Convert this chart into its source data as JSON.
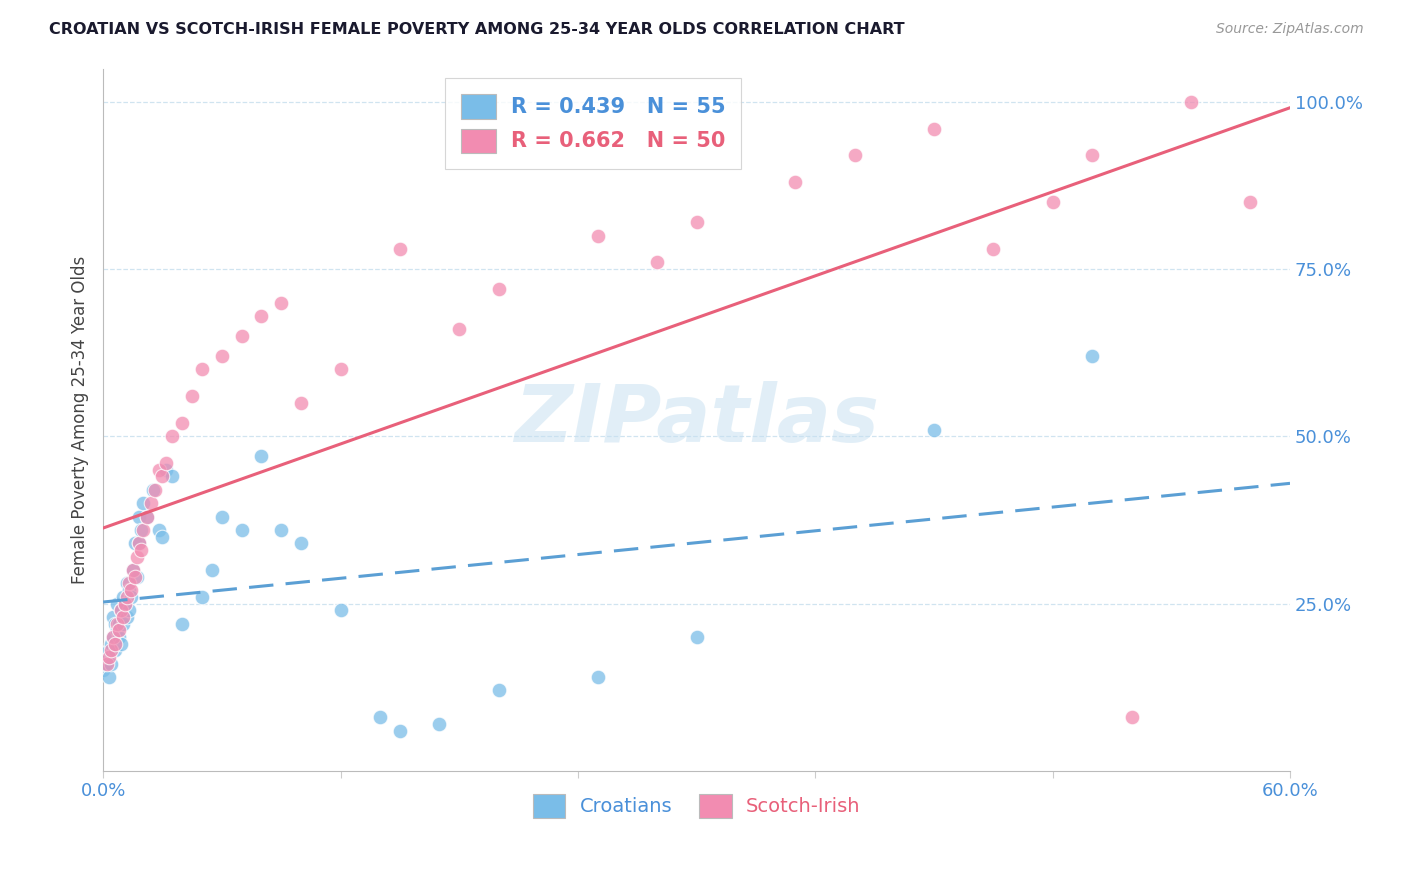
{
  "title": "CROATIAN VS SCOTCH-IRISH FEMALE POVERTY AMONG 25-34 YEAR OLDS CORRELATION CHART",
  "source": "Source: ZipAtlas.com",
  "ylabel_label": "Female Poverty Among 25-34 Year Olds",
  "legend_r1": "R = 0.439",
  "legend_n1": "N = 55",
  "legend_r2": "R = 0.662",
  "legend_n2": "N = 50",
  "croatian_color": "#7abde8",
  "scotchirish_color": "#f28cb1",
  "line_croatian_color": "#5b9fd4",
  "line_scotchirish_color": "#e8607a",
  "watermark_color": "#c5dff0",
  "tick_color": "#4a90d9",
  "title_color": "#1a1a2e",
  "source_color": "#999999",
  "xlim": [
    0.0,
    0.6
  ],
  "ylim": [
    0.0,
    1.05
  ],
  "x_ticks": [
    0.0,
    0.6
  ],
  "x_tick_labels": [
    "0.0%",
    "60.0%"
  ],
  "y_ticks": [
    0.25,
    0.5,
    0.75,
    1.0
  ],
  "y_tick_labels": [
    "25.0%",
    "50.0%",
    "75.0%",
    "100.0%"
  ],
  "croatian_x": [
    0.0,
    0.001,
    0.002,
    0.003,
    0.003,
    0.004,
    0.004,
    0.005,
    0.005,
    0.006,
    0.006,
    0.007,
    0.007,
    0.008,
    0.008,
    0.009,
    0.009,
    0.01,
    0.01,
    0.011,
    0.012,
    0.012,
    0.013,
    0.013,
    0.014,
    0.015,
    0.016,
    0.017,
    0.018,
    0.018,
    0.019,
    0.02,
    0.022,
    0.025,
    0.028,
    0.03,
    0.032,
    0.035,
    0.04,
    0.05,
    0.055,
    0.06,
    0.07,
    0.08,
    0.09,
    0.1,
    0.12,
    0.14,
    0.15,
    0.17,
    0.2,
    0.25,
    0.3,
    0.42,
    0.5
  ],
  "croatian_y": [
    0.15,
    0.16,
    0.17,
    0.18,
    0.14,
    0.16,
    0.19,
    0.2,
    0.23,
    0.22,
    0.18,
    0.25,
    0.21,
    0.2,
    0.22,
    0.24,
    0.19,
    0.22,
    0.26,
    0.25,
    0.28,
    0.23,
    0.27,
    0.24,
    0.26,
    0.3,
    0.34,
    0.29,
    0.38,
    0.34,
    0.36,
    0.4,
    0.38,
    0.42,
    0.36,
    0.35,
    0.45,
    0.44,
    0.22,
    0.26,
    0.3,
    0.38,
    0.36,
    0.47,
    0.36,
    0.34,
    0.24,
    0.08,
    0.06,
    0.07,
    0.12,
    0.14,
    0.2,
    0.51,
    0.62
  ],
  "scotchirish_x": [
    0.002,
    0.003,
    0.004,
    0.005,
    0.006,
    0.007,
    0.008,
    0.009,
    0.01,
    0.011,
    0.012,
    0.013,
    0.014,
    0.015,
    0.016,
    0.017,
    0.018,
    0.019,
    0.02,
    0.022,
    0.024,
    0.026,
    0.028,
    0.03,
    0.032,
    0.035,
    0.04,
    0.045,
    0.05,
    0.06,
    0.07,
    0.08,
    0.09,
    0.1,
    0.12,
    0.15,
    0.18,
    0.2,
    0.25,
    0.28,
    0.3,
    0.35,
    0.38,
    0.42,
    0.45,
    0.48,
    0.5,
    0.52,
    0.55,
    0.58
  ],
  "scotchirish_y": [
    0.16,
    0.17,
    0.18,
    0.2,
    0.19,
    0.22,
    0.21,
    0.24,
    0.23,
    0.25,
    0.26,
    0.28,
    0.27,
    0.3,
    0.29,
    0.32,
    0.34,
    0.33,
    0.36,
    0.38,
    0.4,
    0.42,
    0.45,
    0.44,
    0.46,
    0.5,
    0.52,
    0.56,
    0.6,
    0.62,
    0.65,
    0.68,
    0.7,
    0.55,
    0.6,
    0.78,
    0.66,
    0.72,
    0.8,
    0.76,
    0.82,
    0.88,
    0.92,
    0.96,
    0.78,
    0.85,
    0.92,
    0.08,
    1.0,
    0.85
  ]
}
